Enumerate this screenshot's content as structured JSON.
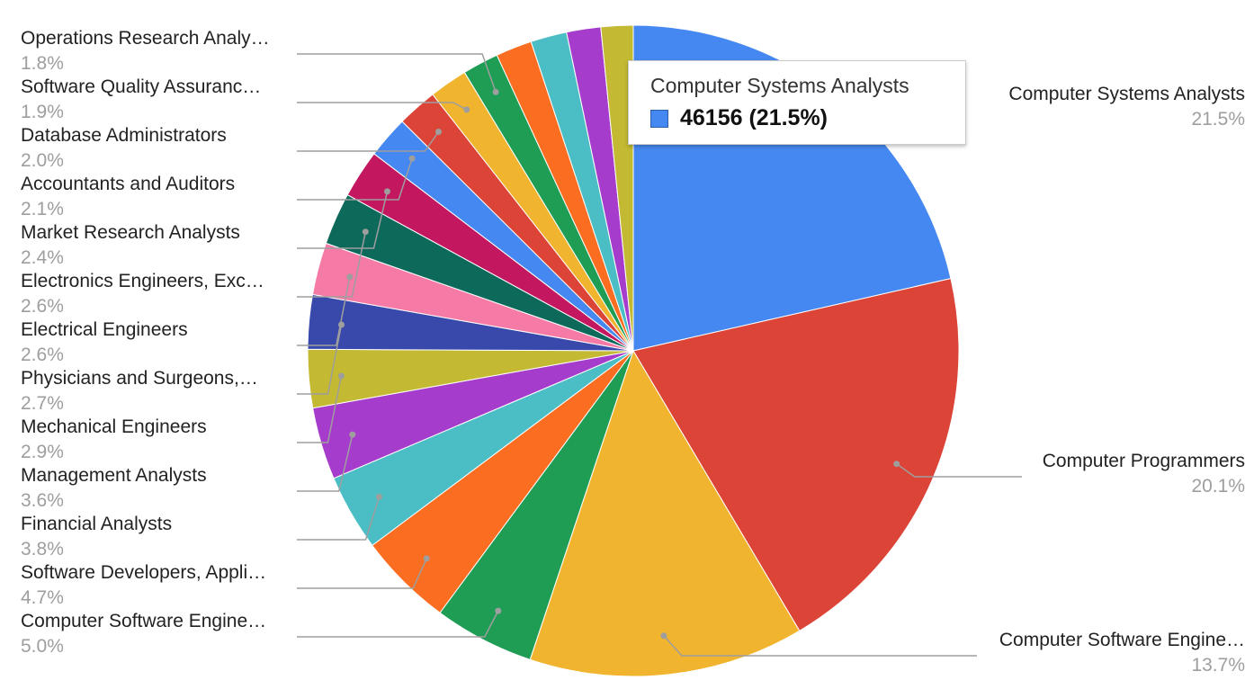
{
  "chart_data": {
    "type": "pie",
    "slices": [
      {
        "label": "Computer Systems Analysts",
        "percent_label": "21.5%",
        "value": 21.5,
        "color": "#4688f1"
      },
      {
        "label": "Computer Programmers",
        "percent_label": "20.1%",
        "value": 20.1,
        "color": "#db4437"
      },
      {
        "label": "Computer Software Engine…",
        "percent_label": "13.7%",
        "value": 13.7,
        "color": "#f1b42f"
      },
      {
        "label": "Computer Software Engine…",
        "percent_label": "5.0%",
        "value": 5.0,
        "color": "#1f9d55"
      },
      {
        "label": "Software Developers, Appli…",
        "percent_label": "4.7%",
        "value": 4.7,
        "color": "#fb6d20"
      },
      {
        "label": "Financial Analysts",
        "percent_label": "3.8%",
        "value": 3.8,
        "color": "#4bbec5"
      },
      {
        "label": "Management Analysts",
        "percent_label": "3.6%",
        "value": 3.6,
        "color": "#a63ccb"
      },
      {
        "label": "Mechanical Engineers",
        "percent_label": "2.9%",
        "value": 2.9,
        "color": "#c3b932"
      },
      {
        "label": "Physicians and Surgeons,…",
        "percent_label": "2.7%",
        "value": 2.7,
        "color": "#3949ab"
      },
      {
        "label": "Electrical Engineers",
        "percent_label": "2.6%",
        "value": 2.6,
        "color": "#f57aa6"
      },
      {
        "label": "Electronics Engineers, Exc…",
        "percent_label": "2.6%",
        "value": 2.6,
        "color": "#0d6a5b"
      },
      {
        "label": "Market Research Analysts",
        "percent_label": "2.4%",
        "value": 2.4,
        "color": "#c3185f"
      },
      {
        "label": "Accountants and Auditors",
        "percent_label": "2.1%",
        "value": 2.1,
        "color": "#4688f1"
      },
      {
        "label": "Database Administrators",
        "percent_label": "2.0%",
        "value": 2.0,
        "color": "#db4437"
      },
      {
        "label": "Software Quality Assuranc…",
        "percent_label": "1.9%",
        "value": 1.9,
        "color": "#f1b42f"
      },
      {
        "label": "Operations Research Analy…",
        "percent_label": "1.8%",
        "value": 1.8,
        "color": "#1f9d55"
      },
      {
        "label": "",
        "percent_label": "",
        "value": 1.8,
        "color": "#fb6d20"
      },
      {
        "label": "",
        "percent_label": "",
        "value": 1.8,
        "color": "#4bbec5"
      },
      {
        "label": "",
        "percent_label": "",
        "value": 1.7,
        "color": "#a63ccb"
      },
      {
        "label": "",
        "percent_label": "",
        "value": 1.6,
        "color": "#c3b932"
      }
    ],
    "legend": "labels-around"
  },
  "tooltip": {
    "title": "Computer Systems Analysts",
    "value_text": "46156 (21.5%)",
    "swatch_color": "#4688f1"
  }
}
